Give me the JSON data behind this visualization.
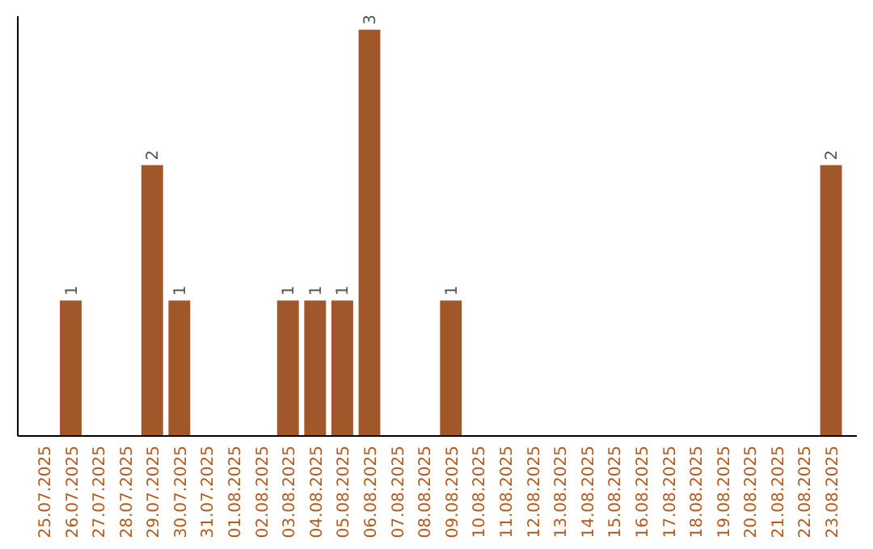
{
  "chart_data": {
    "type": "bar",
    "categories": [
      "25.07.2025",
      "26.07.2025",
      "27.07.2025",
      "28.07.2025",
      "29.07.2025",
      "30.07.2025",
      "31.07.2025",
      "01.08.2025",
      "02.08.2025",
      "03.08.2025",
      "04.08.2025",
      "05.08.2025",
      "06.08.2025",
      "07.08.2025",
      "08.08.2025",
      "09.08.2025",
      "10.08.2025",
      "11.08.2025",
      "12.08.2025",
      "13.08.2025",
      "14.08.2025",
      "15.08.2025",
      "16.08.2025",
      "17.08.2025",
      "18.08.2025",
      "19.08.2025",
      "20.08.2025",
      "21.08.2025",
      "22.08.2025",
      "23.08.2025"
    ],
    "values": [
      0,
      1,
      0,
      0,
      2,
      1,
      0,
      0,
      0,
      1,
      1,
      1,
      3,
      0,
      0,
      1,
      0,
      0,
      0,
      0,
      0,
      0,
      0,
      0,
      0,
      0,
      0,
      0,
      0,
      2
    ],
    "color": "#a0572a",
    "ylim": [
      0,
      3.1
    ],
    "value_labels": [
      null,
      "1",
      null,
      null,
      "2",
      "1",
      null,
      null,
      null,
      "1",
      "1",
      "1",
      "3",
      null,
      null,
      "1",
      null,
      null,
      null,
      null,
      null,
      null,
      null,
      null,
      null,
      null,
      null,
      null,
      null,
      "2"
    ],
    "tick_labels": "x"
  }
}
